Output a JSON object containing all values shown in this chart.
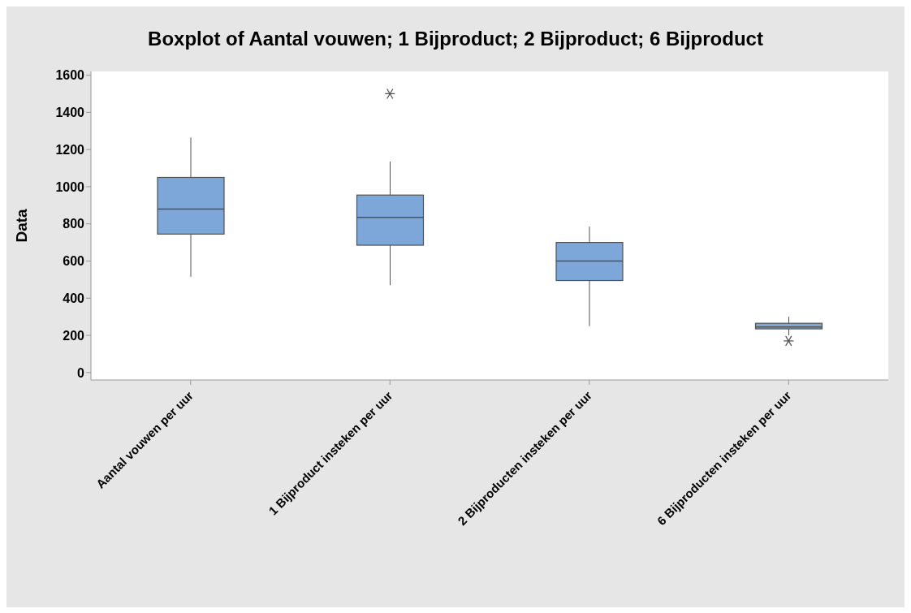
{
  "chart_data": {
    "type": "box",
    "title": "Boxplot of Aantal vouwen; 1 Bijproduct; 2 Bijproduct; 6 Bijproduct",
    "ylabel": "Data",
    "categories": [
      "Aantal vouwen per uur",
      "1 Bijproduct insteken per uur",
      "2 Bijproducten insteken per uur",
      "6 Bijproducten insteken per uur"
    ],
    "series": [
      {
        "color": "#7da7d9",
        "boxes": [
          {
            "low": 515,
            "q1": 745,
            "median": 880,
            "q3": 1050,
            "high": 1265
          },
          {
            "low": 470,
            "q1": 685,
            "median": 835,
            "q3": 955,
            "high": 1135,
            "outliers": [
              1500
            ]
          },
          {
            "low": 250,
            "q1": 495,
            "median": 600,
            "q3": 700,
            "high": 785
          },
          {
            "low": 200,
            "q1": 235,
            "median": 245,
            "q3": 265,
            "high": 300,
            "outliers": [
              170
            ]
          }
        ]
      }
    ],
    "ylim": [
      -40,
      1620
    ],
    "yticks": [
      0,
      200,
      400,
      600,
      800,
      1000,
      1200,
      1400,
      1600
    ],
    "grid": false,
    "marker": "star"
  }
}
